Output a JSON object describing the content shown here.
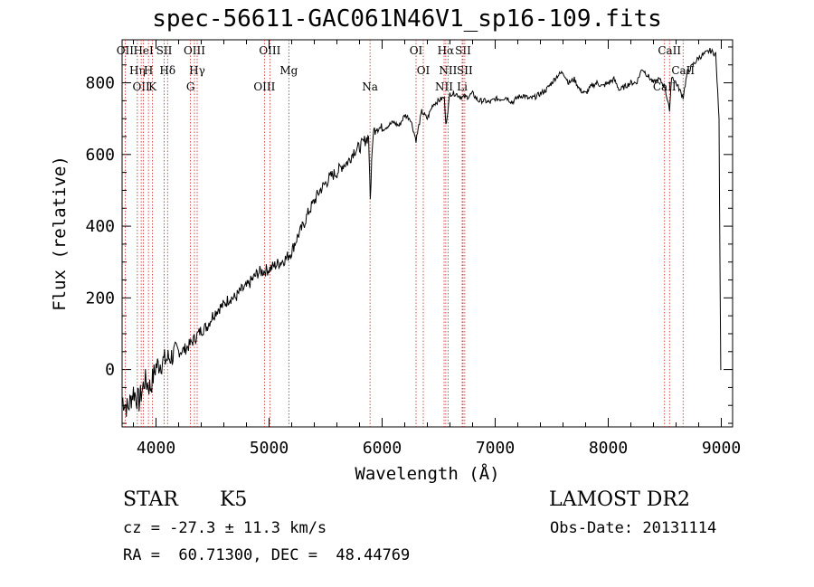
{
  "title": "spec-56611-GAC061N46V1_sp16-109.fits",
  "chart_data": {
    "type": "line",
    "title": "spec-56611-GAC061N46V1_sp16-109.fits",
    "xlabel": "Wavelength (Å)",
    "ylabel": "Flux (relative)",
    "xlim": [
      3700,
      9100
    ],
    "ylim": [
      -160,
      920
    ],
    "xticks": [
      4000,
      5000,
      6000,
      7000,
      8000,
      9000
    ],
    "yticks": [
      0,
      200,
      400,
      600,
      800
    ],
    "series": [
      {
        "x": [
          3700,
          3750,
          3800,
          3850,
          3900,
          3950,
          4000,
          4050,
          4100,
          4150,
          4200,
          4250,
          4300,
          4350,
          4400,
          4450,
          4500,
          4550,
          4600,
          4650,
          4700,
          4750,
          4800,
          4850,
          4900,
          4950,
          5000,
          5050,
          5100,
          5150,
          5200,
          5250,
          5300,
          5350,
          5400,
          5450,
          5500,
          5550,
          5600,
          5650,
          5700,
          5750,
          5800,
          5850,
          5880,
          5895,
          5920,
          5950,
          6000,
          6050,
          6100,
          6150,
          6200,
          6250,
          6300,
          6350,
          6400,
          6450,
          6500,
          6550,
          6563,
          6600,
          6650,
          6700,
          6750,
          6800,
          6850,
          6900,
          6950,
          7000,
          7050,
          7100,
          7150,
          7200,
          7250,
          7300,
          7350,
          7400,
          7450,
          7500,
          7550,
          7600,
          7650,
          7700,
          7750,
          7800,
          7850,
          7900,
          7950,
          8000,
          8050,
          8100,
          8150,
          8200,
          8250,
          8300,
          8350,
          8400,
          8450,
          8500,
          8542,
          8560,
          8600,
          8662,
          8700,
          8750,
          8800,
          8850,
          8900,
          8950,
          8980,
          8990,
          8995,
          9000
        ],
        "y": [
          -80,
          -110,
          -60,
          -90,
          -30,
          -50,
          10,
          20,
          30,
          40,
          50,
          55,
          70,
          90,
          110,
          120,
          150,
          170,
          180,
          200,
          200,
          220,
          230,
          250,
          270,
          275,
          280,
          290,
          300,
          310,
          330,
          370,
          400,
          440,
          470,
          500,
          520,
          540,
          550,
          570,
          580,
          610,
          620,
          640,
          650,
          480,
          660,
          680,
          670,
          680,
          690,
          680,
          710,
          700,
          640,
          720,
          700,
          740,
          750,
          760,
          680,
          770,
          770,
          760,
          760,
          770,
          750,
          750,
          745,
          755,
          755,
          760,
          745,
          760,
          765,
          755,
          760,
          770,
          780,
          800,
          820,
          830,
          800,
          810,
          780,
          770,
          790,
          800,
          790,
          800,
          810,
          780,
          790,
          800,
          800,
          840,
          820,
          800,
          810,
          790,
          720,
          820,
          800,
          760,
          830,
          850,
          870,
          880,
          890,
          880,
          700,
          200,
          0,
          0
        ]
      }
    ],
    "line_markers": [
      {
        "label": "OII",
        "wavelength": 3727
      },
      {
        "label": "Hη",
        "wavelength": 3835
      },
      {
        "label": "OII",
        "wavelength": 3869
      },
      {
        "label": "HeI",
        "wavelength": 3889
      },
      {
        "label": "H",
        "wavelength": 3933
      },
      {
        "label": "K",
        "wavelength": 3969
      },
      {
        "label": "SII",
        "wavelength": 4072
      },
      {
        "label": "Hδ",
        "wavelength": 4102
      },
      {
        "label": "G",
        "wavelength": 4305
      },
      {
        "label": "OIII",
        "wavelength": 4340
      },
      {
        "label": "Hγ",
        "wavelength": 4364
      },
      {
        "label": "OIII",
        "wavelength": 4959
      },
      {
        "label": "OIII",
        "wavelength": 5007
      },
      {
        "label": "Mg",
        "wavelength": 5175
      },
      {
        "label": "Na",
        "wavelength": 5893
      },
      {
        "label": "OI",
        "wavelength": 6300
      },
      {
        "label": "OI",
        "wavelength": 6364
      },
      {
        "label": "NII",
        "wavelength": 6548
      },
      {
        "label": "Hα",
        "wavelength": 6563
      },
      {
        "label": "NII",
        "wavelength": 6583
      },
      {
        "label": "Li",
        "wavelength": 6708
      },
      {
        "label": "SII",
        "wavelength": 6716
      },
      {
        "label": "SII",
        "wavelength": 6731
      },
      {
        "label": "CaII",
        "wavelength": 8498
      },
      {
        "label": "CaII",
        "wavelength": 8542
      },
      {
        "label": "CaII",
        "wavelength": 8662
      }
    ]
  },
  "info": {
    "object_class": "STAR",
    "subclass": "K5",
    "survey": "LAMOST DR2",
    "cz": "cz = -27.3 ± 11.3 km/s",
    "obs_date": "Obs-Date: 20131114",
    "coords": "RA =  60.71300, DEC =  48.44769"
  }
}
